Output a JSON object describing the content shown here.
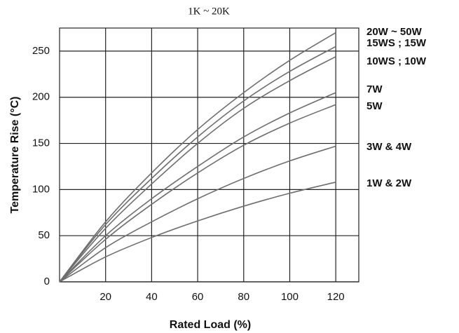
{
  "chart_data": {
    "type": "line",
    "title": "1K ~ 20K",
    "x_label": "Rated Load (%)",
    "y_label": "Temperature Rise (°C)",
    "x": [
      0,
      20,
      40,
      60,
      80,
      100,
      120
    ],
    "series": [
      {
        "name": "20W ~ 50W",
        "color": "#6e6e6e",
        "values": [
          0,
          65,
          118,
          165,
          205,
          240,
          270
        ]
      },
      {
        "name": "15WS ; 15W",
        "color": "#6e6e6e",
        "values": [
          0,
          62,
          112,
          157,
          196,
          228,
          255
        ]
      },
      {
        "name": "10WS ; 10W",
        "color": "#6e6e6e",
        "values": [
          0,
          58,
          106,
          150,
          188,
          218,
          244
        ]
      },
      {
        "name": "7W",
        "color": "#6e6e6e",
        "values": [
          0,
          50,
          90,
          125,
          157,
          183,
          205
        ]
      },
      {
        "name": "5W",
        "color": "#6e6e6e",
        "values": [
          0,
          46,
          84,
          118,
          148,
          172,
          192
        ]
      },
      {
        "name": "3W & 4W",
        "color": "#6e6e6e",
        "values": [
          0,
          37,
          65,
          90,
          112,
          131,
          147
        ]
      },
      {
        "name": "1W & 2W",
        "color": "#6e6e6e",
        "values": [
          0,
          27,
          48,
          66,
          82,
          96,
          108
        ]
      }
    ],
    "xlim": [
      0,
      130
    ],
    "ylim": [
      0,
      275
    ],
    "xticks": [
      20,
      40,
      60,
      80,
      100,
      120
    ],
    "yticks": [
      0,
      50,
      100,
      150,
      200,
      250
    ],
    "grid": true
  }
}
